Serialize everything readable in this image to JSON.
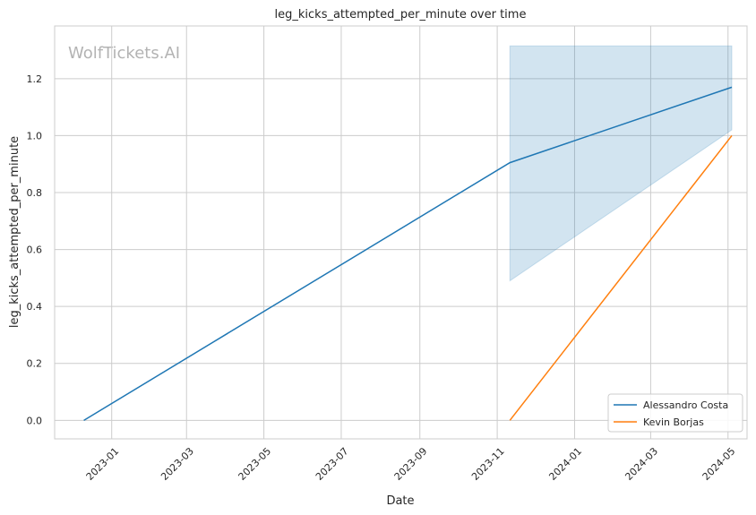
{
  "chart_data": {
    "type": "line",
    "title": "leg_kicks_attempted_per_minute over time",
    "xlabel": "Date",
    "ylabel": "leg_kicks_attempted_per_minute",
    "watermark": "WolfTickets.AI",
    "x_ticks": [
      "2023-01",
      "2023-03",
      "2023-05",
      "2023-07",
      "2023-09",
      "2023-11",
      "2024-01",
      "2024-03",
      "2024-05"
    ],
    "y_ticks": [
      "0.0",
      "0.2",
      "0.4",
      "0.6",
      "0.8",
      "1.0",
      "1.2"
    ],
    "xlim": [
      "2022-11-17",
      "2024-05-16"
    ],
    "ylim": [
      -0.065,
      1.385
    ],
    "grid": true,
    "legend_position": "bottom-right",
    "series": [
      {
        "name": "Alessandro Costa",
        "color": "#1f77b4",
        "points": [
          {
            "x": "2022-12-10",
            "y": 0.0
          },
          {
            "x": "2023-11-11",
            "y": 0.905
          },
          {
            "x": "2024-05-04",
            "y": 1.17
          }
        ],
        "band": [
          {
            "x": "2023-11-11",
            "lo": 0.49,
            "hi": 1.315
          },
          {
            "x": "2024-05-04",
            "lo": 1.02,
            "hi": 1.315
          }
        ]
      },
      {
        "name": "Kevin Borjas",
        "color": "#ff7f0e",
        "points": [
          {
            "x": "2023-11-11",
            "y": 0.0
          },
          {
            "x": "2024-05-04",
            "y": 1.0
          }
        ]
      }
    ]
  }
}
